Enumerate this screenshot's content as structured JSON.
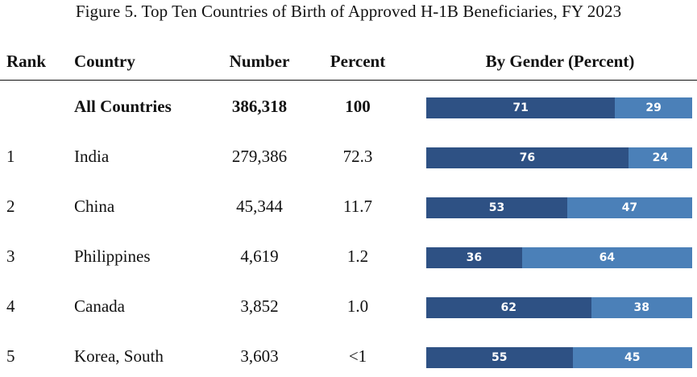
{
  "title": "Figure 5. Top Ten Countries of Birth of Approved H-1B Beneficiaries, FY 2023",
  "headers": {
    "rank": "Rank",
    "country": "Country",
    "number": "Number",
    "percent": "Percent",
    "gender": "By Gender (Percent)"
  },
  "colors": {
    "first_segment": "#2e5184",
    "second_segment": "#4b80b8"
  },
  "chart_data": {
    "type": "table",
    "title": "Figure 5. Top Ten Countries of Birth of Approved H-1B Beneficiaries, FY 2023",
    "columns": [
      "Rank",
      "Country",
      "Number",
      "Percent",
      "By Gender (Percent)"
    ],
    "rows": [
      {
        "rank": "",
        "country": "All Countries",
        "number": "386,318",
        "percent": "100",
        "gender": [
          71,
          29
        ],
        "total": true
      },
      {
        "rank": "1",
        "country": "India",
        "number": "279,386",
        "percent": "72.3",
        "gender": [
          76,
          24
        ]
      },
      {
        "rank": "2",
        "country": "China",
        "number": "45,344",
        "percent": "11.7",
        "gender": [
          53,
          47
        ]
      },
      {
        "rank": "3",
        "country": "Philippines",
        "number": "4,619",
        "percent": "1.2",
        "gender": [
          36,
          64
        ]
      },
      {
        "rank": "4",
        "country": "Canada",
        "number": "3,852",
        "percent": "1.0",
        "gender": [
          62,
          38
        ]
      },
      {
        "rank": "5",
        "country": "Korea, South",
        "number": "3,603",
        "percent": "<1",
        "gender": [
          55,
          45
        ]
      }
    ]
  }
}
